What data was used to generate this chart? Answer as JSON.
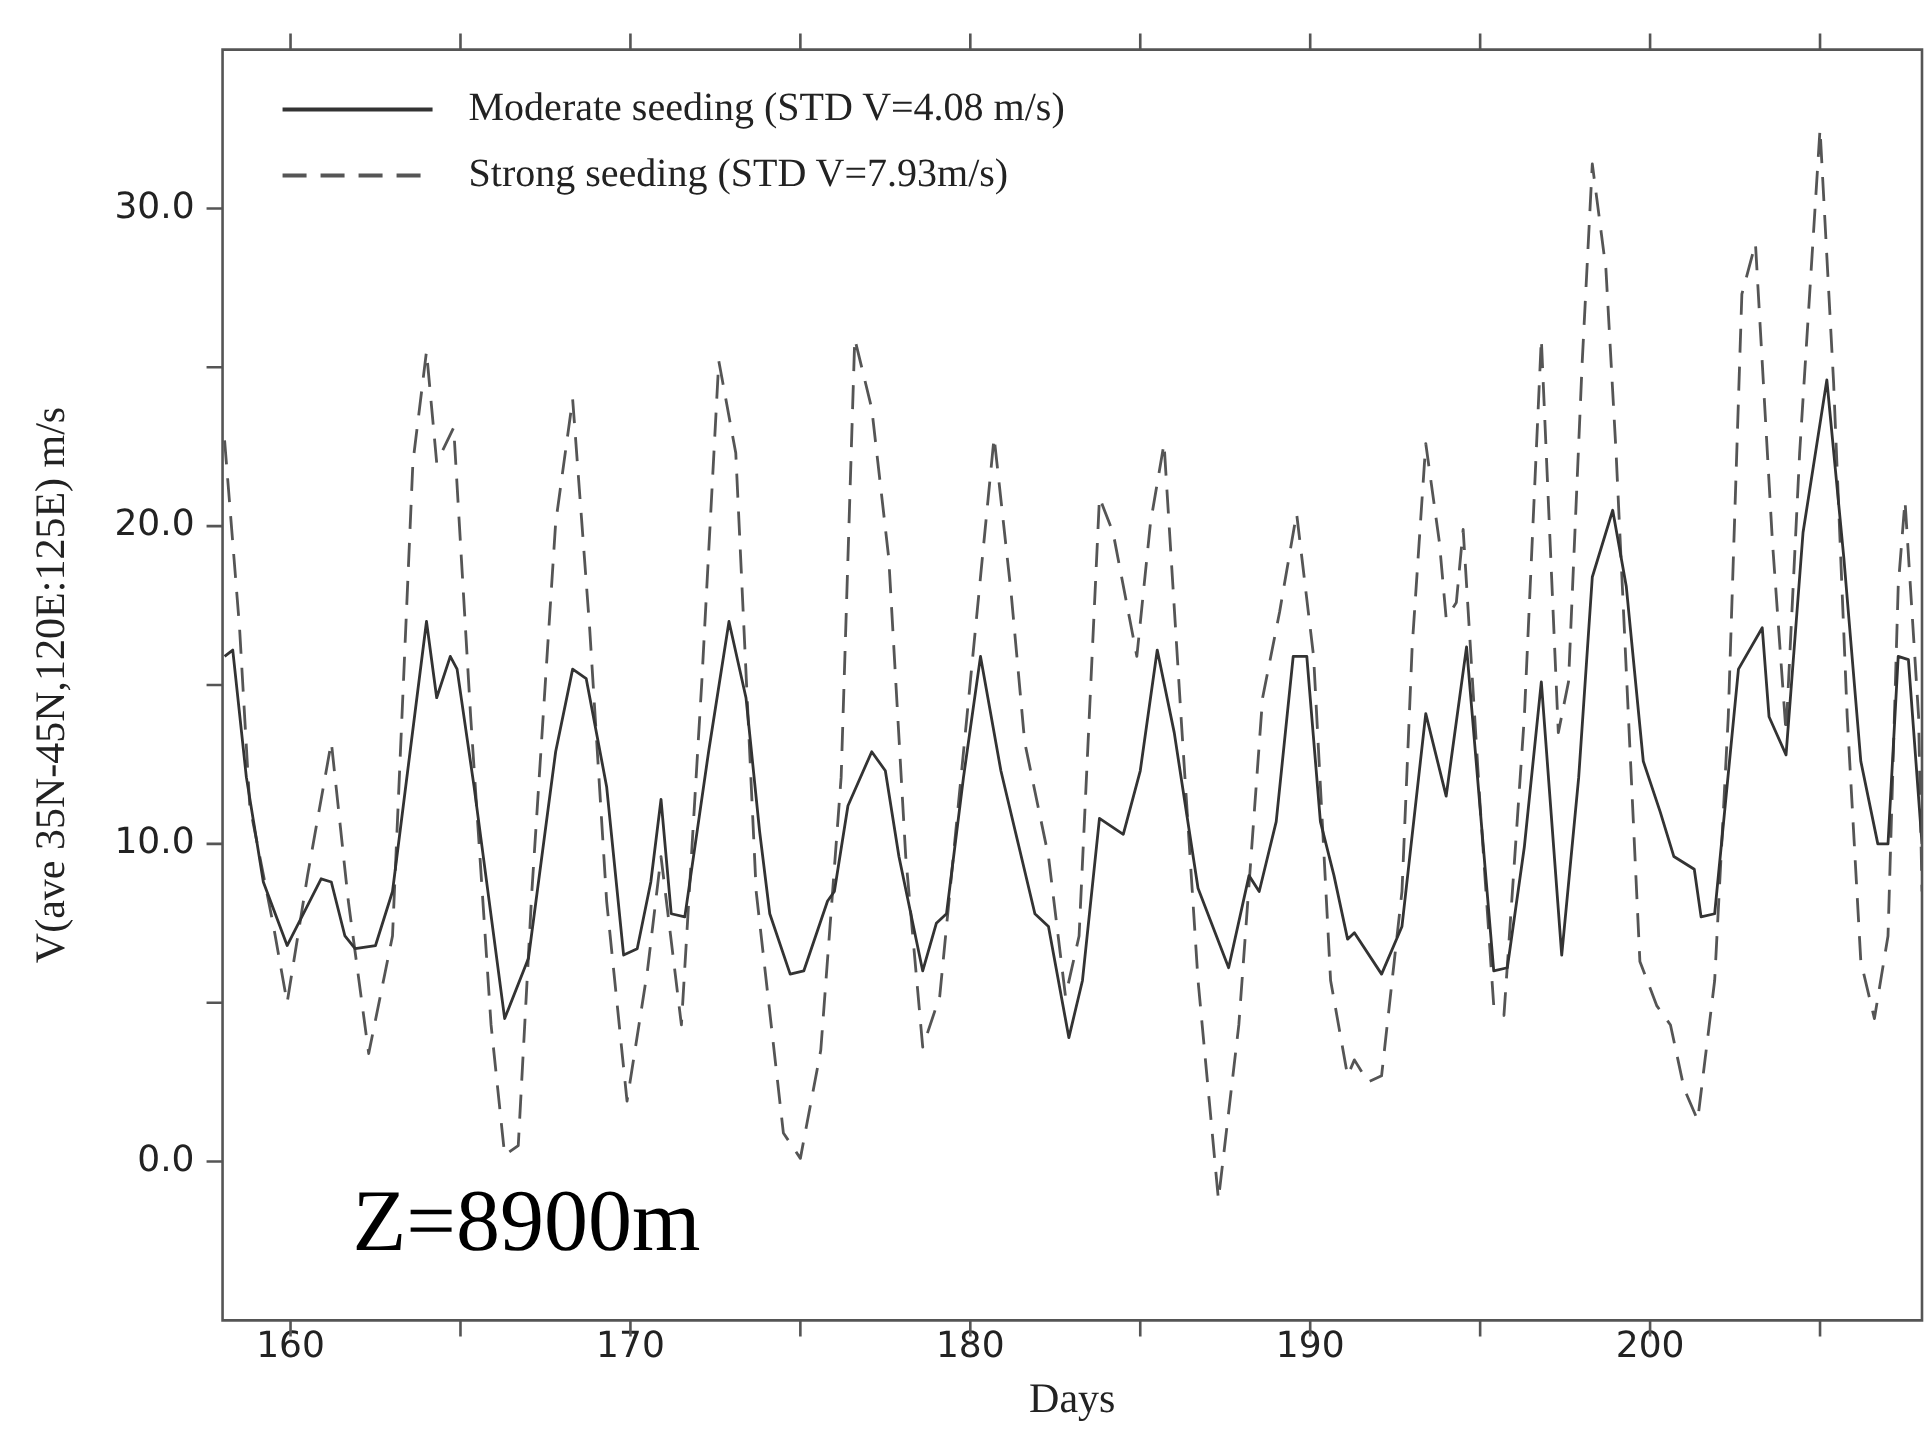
{
  "chart_data": {
    "type": "line",
    "xlabel": "Days",
    "ylabel": "V(ave 35N-45N,120E:125E) m/s",
    "annotations": [
      "Z=8900m"
    ],
    "xlim": [
      158,
      208
    ],
    "xticks": [
      160,
      {
        "value": 165,
        "label": null
      },
      170,
      {
        "value": 175,
        "label": null
      },
      180,
      {
        "value": 185,
        "label": null
      },
      190,
      {
        "value": 195,
        "label": null
      },
      200,
      {
        "value": 205,
        "label": null
      }
    ],
    "ylim": [
      -5,
      35
    ],
    "yticks": [
      {
        "value": 0,
        "label": "0.0"
      },
      {
        "value": 5,
        "label": null
      },
      {
        "value": 10,
        "label": "10.0"
      },
      {
        "value": 15,
        "label": null
      },
      {
        "value": 20,
        "label": "20.0"
      },
      {
        "value": 25,
        "label": null
      },
      {
        "value": 30,
        "label": "30.0"
      }
    ],
    "grid": false,
    "legend": "top left",
    "marker": "none",
    "series": [
      {
        "name": "Moderate seeding (STD V=4.08 m/s)",
        "color": "#333333",
        "line_style": "solid",
        "x": [
          158.06,
          158.3,
          158.7,
          159.2,
          159.9,
          160.9,
          161.2,
          161.6,
          161.9,
          162.5,
          163.0,
          164.0,
          164.3,
          164.7,
          164.9,
          165.4,
          166.3,
          167.0,
          167.8,
          168.3,
          168.7,
          169.3,
          169.8,
          170.2,
          170.6,
          170.9,
          171.2,
          171.6,
          172.3,
          172.9,
          173.4,
          173.8,
          174.1,
          174.7,
          175.1,
          175.8,
          176.0,
          176.4,
          177.1,
          177.5,
          177.9,
          178.6,
          179.0,
          179.3,
          179.8,
          180.3,
          180.9,
          181.9,
          182.3,
          182.9,
          183.3,
          183.8,
          184.5,
          185.0,
          185.5,
          186.0,
          186.7,
          187.6,
          188.2,
          188.5,
          189.0,
          189.5,
          189.9,
          190.3,
          190.7,
          191.1,
          191.3,
          192.1,
          192.7,
          193.4,
          194.0,
          194.6,
          195.0,
          195.4,
          195.8,
          196.3,
          196.8,
          197.4,
          197.9,
          198.3,
          198.9,
          199.3,
          199.8,
          200.3,
          200.7,
          201.3,
          201.5,
          201.9,
          202.6,
          203.3,
          203.5,
          204.0,
          204.5,
          205.2,
          205.7,
          206.2,
          206.7,
          207.0,
          207.3,
          207.6,
          208.0
        ],
        "values": [
          15.9,
          16.1,
          12.1,
          8.8,
          6.8,
          8.9,
          8.8,
          7.1,
          6.7,
          6.8,
          8.5,
          17.0,
          14.6,
          15.9,
          15.5,
          11.8,
          4.5,
          6.4,
          12.9,
          15.5,
          15.2,
          11.8,
          6.5,
          6.7,
          8.8,
          11.4,
          7.8,
          7.7,
          12.9,
          17.0,
          14.6,
          10.4,
          7.8,
          5.9,
          6.0,
          8.2,
          8.5,
          11.2,
          12.9,
          12.3,
          9.6,
          6.0,
          7.5,
          7.8,
          12.1,
          15.9,
          12.3,
          7.8,
          7.4,
          3.9,
          5.7,
          10.8,
          10.3,
          12.3,
          16.1,
          13.5,
          8.6,
          6.1,
          9.0,
          8.5,
          10.7,
          15.9,
          15.9,
          10.7,
          9.0,
          7.0,
          7.2,
          5.9,
          7.4,
          14.1,
          11.5,
          16.2,
          11.1,
          6.0,
          6.1,
          9.9,
          15.1,
          6.5,
          12.1,
          18.4,
          20.5,
          18.1,
          12.6,
          11.0,
          9.6,
          9.2,
          7.7,
          7.8,
          15.5,
          16.8,
          14.0,
          12.8,
          19.8,
          24.6,
          19.0,
          12.6,
          10.0,
          10.0,
          15.9,
          15.8,
          10.0
        ]
      },
      {
        "name": "Strong seeding (STD V=7.93m/s)",
        "color": "#555555",
        "line_style": "dashed",
        "x": [
          158.06,
          158.5,
          158.8,
          159.5,
          159.9,
          160.5,
          161.2,
          161.7,
          162.3,
          163.0,
          163.6,
          164.0,
          164.3,
          164.8,
          165.3,
          165.9,
          166.3,
          166.7,
          167.1,
          167.8,
          168.3,
          168.8,
          169.3,
          169.9,
          170.5,
          170.9,
          171.5,
          172.1,
          172.6,
          173.1,
          173.7,
          174.5,
          175.0,
          175.6,
          176.2,
          176.6,
          177.1,
          177.6,
          178.1,
          178.6,
          179.1,
          179.9,
          180.7,
          181.2,
          181.6,
          182.3,
          182.8,
          183.2,
          183.8,
          184.2,
          184.9,
          185.3,
          185.7,
          186.2,
          186.7,
          187.3,
          187.9,
          188.6,
          189.1,
          189.6,
          190.1,
          190.6,
          191.1,
          191.3,
          191.7,
          192.1,
          192.7,
          193.0,
          193.4,
          193.8,
          194.0,
          194.3,
          194.5,
          195.0,
          195.4,
          195.7,
          196.3,
          196.8,
          197.3,
          197.6,
          198.0,
          198.3,
          198.7,
          199.0,
          199.7,
          200.2,
          200.6,
          201.0,
          201.4,
          201.9,
          202.3,
          202.7,
          203.1,
          203.6,
          204.0,
          204.4,
          205.0,
          205.4,
          205.8,
          206.2,
          206.6,
          207.0,
          207.3,
          207.5,
          207.9,
          208.0
        ],
        "values": [
          22.7,
          16.8,
          11.2,
          7.4,
          5.0,
          9.0,
          13.2,
          8.2,
          3.4,
          7.1,
          22.0,
          25.5,
          22.0,
          23.1,
          14.0,
          4.3,
          0.2,
          0.5,
          8.5,
          20.1,
          24.0,
          16.8,
          8.2,
          1.9,
          6.0,
          9.6,
          4.3,
          15.1,
          25.2,
          22.3,
          8.5,
          0.9,
          0.1,
          3.5,
          12.1,
          25.9,
          23.7,
          19.0,
          9.6,
          3.6,
          5.2,
          14.0,
          22.8,
          17.9,
          13.2,
          9.6,
          5.2,
          7.1,
          20.9,
          19.8,
          15.9,
          20.1,
          22.6,
          14.0,
          5.7,
          -1.2,
          4.3,
          14.6,
          17.3,
          20.4,
          15.9,
          5.7,
          2.7,
          3.2,
          2.5,
          2.7,
          8.5,
          16.2,
          22.6,
          19.5,
          17.1,
          17.6,
          19.9,
          11.2,
          4.9,
          4.6,
          14.0,
          25.9,
          13.5,
          15.1,
          25.1,
          31.4,
          28.1,
          22.3,
          6.3,
          4.9,
          4.3,
          2.3,
          1.3,
          5.7,
          14.0,
          27.3,
          28.9,
          19.5,
          13.5,
          22.3,
          32.5,
          24.5,
          14.0,
          6.3,
          4.5,
          7.1,
          18.1,
          20.8,
          14.0,
          8.5
        ]
      }
    ]
  }
}
